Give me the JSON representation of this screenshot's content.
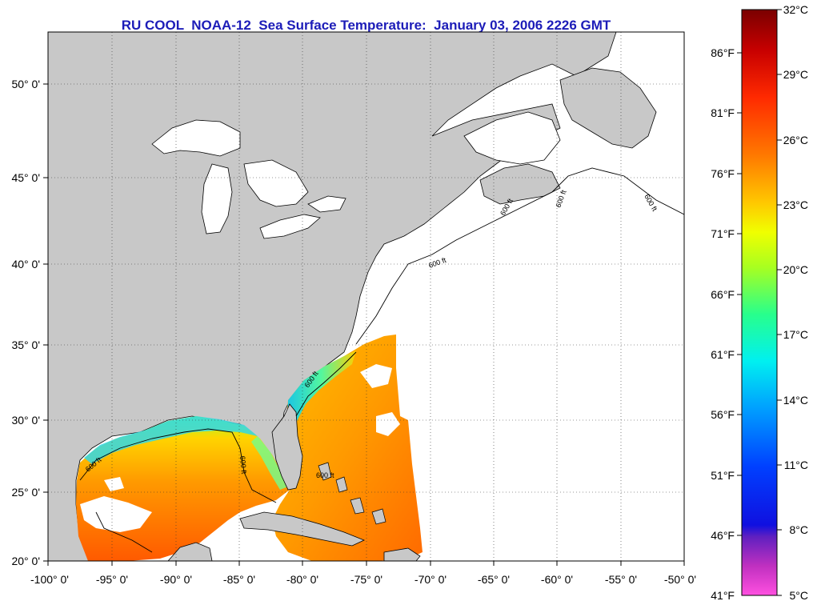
{
  "title": "RU COOL  NOAA-12  Sea Surface Temperature:  January 03, 2006 2226 GMT",
  "map": {
    "lon_ticks": [
      "-100° 0'",
      "-95° 0'",
      "-90° 0'",
      "-85° 0'",
      "-80° 0'",
      "-75° 0'",
      "-70° 0'",
      "-65° 0'",
      "-60° 0'",
      "-55° 0'",
      "-50° 0'"
    ],
    "lat_ticks": [
      "50° 0'",
      "45° 0'",
      "40° 0'",
      "35° 0'",
      "30° 0'",
      "25° 0'",
      "20° 0'"
    ],
    "isobath_label": "600 ft",
    "colors": {
      "land": "#c8c8c8",
      "ocean_nodata": "#ffffff",
      "cloud": "#ffffff"
    }
  },
  "colorbar": {
    "celsius": [
      "32°C",
      "29°C",
      "26°C",
      "23°C",
      "20°C",
      "17°C",
      "14°C",
      "11°C",
      "8°C",
      "5°C"
    ],
    "fahrenheit": [
      "86°F",
      "81°F",
      "76°F",
      "71°F",
      "66°F",
      "61°F",
      "56°F",
      "51°F",
      "46°F",
      "41°F"
    ],
    "gradient": [
      "#7a0000",
      "#c80000",
      "#ff2a00",
      "#ff7a00",
      "#ffc800",
      "#f0ff00",
      "#9cff28",
      "#28ff8c",
      "#00f0f0",
      "#00a0ff",
      "#0040ff",
      "#1010e0",
      "#7020c0",
      "#c030c0",
      "#ff40d0",
      "#ff60e0"
    ]
  }
}
